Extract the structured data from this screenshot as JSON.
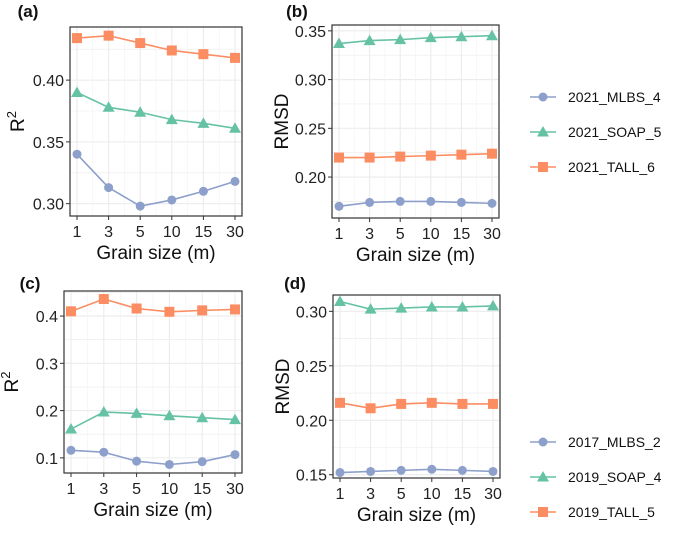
{
  "colors": {
    "MLBS": "#8da0cb",
    "SOAP": "#66c2a5",
    "TALL": "#fc8d62"
  },
  "legends": [
    {
      "entries": [
        {
          "label": "2021_MLBS_4",
          "color": "#8da0cb",
          "marker": "circle"
        },
        {
          "label": "2021_SOAP_5",
          "color": "#66c2a5",
          "marker": "triangle"
        },
        {
          "label": "2021_TALL_6",
          "color": "#fc8d62",
          "marker": "square"
        }
      ]
    },
    {
      "entries": [
        {
          "label": "2017_MLBS_2",
          "color": "#8da0cb",
          "marker": "circle"
        },
        {
          "label": "2019_SOAP_4",
          "color": "#66c2a5",
          "marker": "triangle"
        },
        {
          "label": "2019_TALL_5",
          "color": "#fc8d62",
          "marker": "square"
        }
      ]
    }
  ],
  "chart_data": [
    {
      "panel": "(a)",
      "type": "line",
      "xlabel": "Grain size (m)",
      "ylabel": "R2",
      "categories": [
        "1",
        "3",
        "5",
        "10",
        "15",
        "30"
      ],
      "ylim": [
        0.29,
        0.443
      ],
      "yticks": [
        0.3,
        0.35,
        0.4
      ],
      "ytick_labels": [
        "0.30",
        "0.35",
        "0.40"
      ],
      "grid": true,
      "series": [
        {
          "name": "2021_MLBS_4",
          "marker": "circle",
          "color": "#8da0cb",
          "values": [
            0.34,
            0.313,
            0.298,
            0.303,
            0.31,
            0.318
          ]
        },
        {
          "name": "2021_SOAP_5",
          "marker": "triangle",
          "color": "#66c2a5",
          "values": [
            0.39,
            0.378,
            0.374,
            0.368,
            0.365,
            0.361
          ]
        },
        {
          "name": "2021_TALL_6",
          "marker": "square",
          "color": "#fc8d62",
          "values": [
            0.434,
            0.436,
            0.43,
            0.424,
            0.421,
            0.418
          ]
        }
      ]
    },
    {
      "panel": "(b)",
      "type": "line",
      "xlabel": "Grain size (m)",
      "ylabel": "RMSD",
      "categories": [
        "1",
        "3",
        "5",
        "10",
        "15",
        "30"
      ],
      "ylim": [
        0.158,
        0.356
      ],
      "yticks": [
        0.2,
        0.25,
        0.3,
        0.35
      ],
      "ytick_labels": [
        "0.20",
        "0.25",
        "0.30",
        "0.35"
      ],
      "grid": true,
      "series": [
        {
          "name": "2021_MLBS_4",
          "marker": "circle",
          "color": "#8da0cb",
          "values": [
            0.17,
            0.174,
            0.175,
            0.175,
            0.174,
            0.173
          ]
        },
        {
          "name": "2021_SOAP_5",
          "marker": "triangle",
          "color": "#66c2a5",
          "values": [
            0.337,
            0.34,
            0.341,
            0.343,
            0.344,
            0.345
          ]
        },
        {
          "name": "2021_TALL_6",
          "marker": "square",
          "color": "#fc8d62",
          "values": [
            0.22,
            0.22,
            0.221,
            0.222,
            0.223,
            0.224
          ]
        }
      ]
    },
    {
      "panel": "(c)",
      "type": "line",
      "xlabel": "Grain size (m)",
      "ylabel": "R2",
      "categories": [
        "1",
        "3",
        "5",
        "10",
        "15",
        "30"
      ],
      "ylim": [
        0.068,
        0.453
      ],
      "yticks": [
        0.1,
        0.2,
        0.3,
        0.4
      ],
      "ytick_labels": [
        "0.1",
        "0.2",
        "0.3",
        "0.4"
      ],
      "grid": true,
      "series": [
        {
          "name": "2017_MLBS_2",
          "marker": "circle",
          "color": "#8da0cb",
          "values": [
            0.116,
            0.112,
            0.093,
            0.086,
            0.092,
            0.107
          ]
        },
        {
          "name": "2019_SOAP_4",
          "marker": "triangle",
          "color": "#66c2a5",
          "values": [
            0.161,
            0.197,
            0.194,
            0.189,
            0.185,
            0.181
          ]
        },
        {
          "name": "2019_TALL_5",
          "marker": "square",
          "color": "#fc8d62",
          "values": [
            0.41,
            0.436,
            0.416,
            0.409,
            0.412,
            0.414
          ]
        }
      ]
    },
    {
      "panel": "(d)",
      "type": "line",
      "xlabel": "Grain size (m)",
      "ylabel": "RMSD",
      "categories": [
        "1",
        "3",
        "5",
        "10",
        "15",
        "30"
      ],
      "ylim": [
        0.147,
        0.315
      ],
      "yticks": [
        0.15,
        0.2,
        0.25,
        0.3
      ],
      "ytick_labels": [
        "0.15",
        "0.20",
        "0.25",
        "0.30"
      ],
      "grid": true,
      "series": [
        {
          "name": "2017_MLBS_2",
          "marker": "circle",
          "color": "#8da0cb",
          "values": [
            0.152,
            0.153,
            0.154,
            0.155,
            0.154,
            0.153
          ]
        },
        {
          "name": "2019_SOAP_4",
          "marker": "triangle",
          "color": "#66c2a5",
          "values": [
            0.309,
            0.302,
            0.303,
            0.304,
            0.304,
            0.305
          ]
        },
        {
          "name": "2019_TALL_5",
          "marker": "square",
          "color": "#fc8d62",
          "values": [
            0.216,
            0.211,
            0.215,
            0.216,
            0.215,
            0.215
          ]
        }
      ]
    }
  ]
}
